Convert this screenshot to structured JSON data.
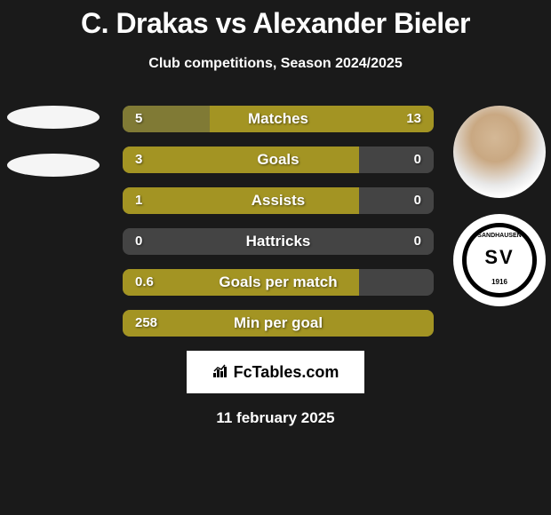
{
  "title": "C. Drakas vs Alexander Bieler",
  "subtitle": "Club competitions, Season 2024/2025",
  "date": "11 february 2025",
  "branding": "FcTables.com",
  "colors": {
    "background": "#1a1a1a",
    "bar_primary": "#a39423",
    "bar_secondary": "#807a35",
    "bar_neutral": "#444444",
    "text": "#ffffff",
    "ellipse": "#f5f5f5"
  },
  "left_avatar": {
    "ellipse1_color": "#f5f5f5",
    "ellipse2_color": "#f5f5f5"
  },
  "right_avatar": {
    "club_name_top": "SANDHAUSEN",
    "club_year": "1916",
    "club_letters": "SV"
  },
  "stats": [
    {
      "label": "Matches",
      "left_val": "5",
      "right_val": "13",
      "left_pct": 28,
      "right_pct": 72,
      "left_color": "#807a35",
      "right_color": "#a39423"
    },
    {
      "label": "Goals",
      "left_val": "3",
      "right_val": "0",
      "left_pct": 76,
      "right_pct": 0,
      "left_color": "#a39423",
      "right_color": "#444444"
    },
    {
      "label": "Assists",
      "left_val": "1",
      "right_val": "0",
      "left_pct": 76,
      "right_pct": 0,
      "left_color": "#a39423",
      "right_color": "#444444"
    },
    {
      "label": "Hattricks",
      "left_val": "0",
      "right_val": "0",
      "left_pct": 0,
      "right_pct": 0,
      "left_color": "#444444",
      "right_color": "#444444"
    },
    {
      "label": "Goals per match",
      "left_val": "0.6",
      "right_val": "",
      "left_pct": 76,
      "right_pct": 0,
      "left_color": "#a39423",
      "right_color": "#444444"
    },
    {
      "label": "Min per goal",
      "left_val": "258",
      "right_val": "",
      "left_pct": 100,
      "right_pct": 0,
      "left_color": "#a39423",
      "right_color": "#444444"
    }
  ]
}
